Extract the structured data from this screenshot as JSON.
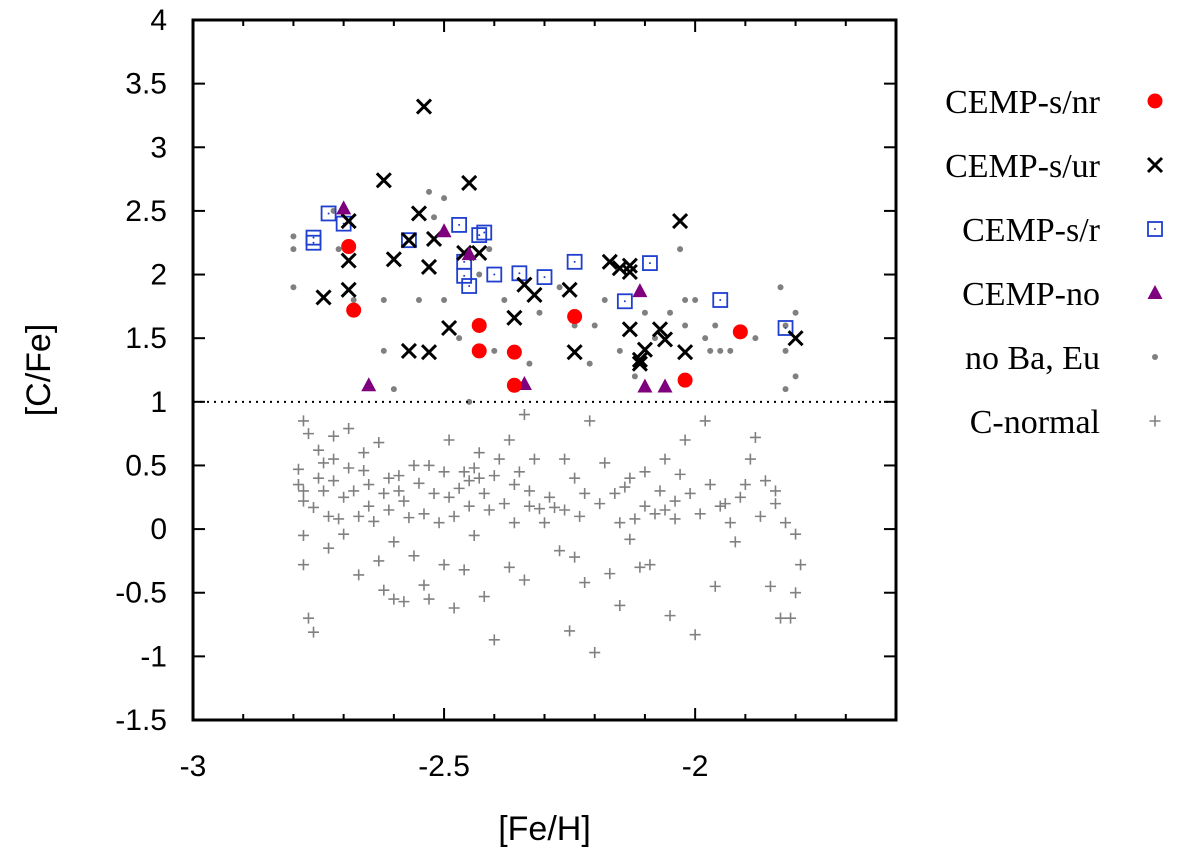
{
  "chart_data": {
    "type": "scatter",
    "title": "",
    "xlabel": "[Fe/H]",
    "ylabel": "[C/Fe]",
    "xlim": [
      -3,
      -1.6
    ],
    "ylim": [
      -1.5,
      4
    ],
    "xticks": [
      -3,
      -2.5,
      -2
    ],
    "xtick_labels": [
      "-3",
      "-2.5",
      "-2"
    ],
    "yticks": [
      -1.5,
      -1,
      -0.5,
      0,
      0.5,
      1,
      1.5,
      2,
      2.5,
      3,
      3.5,
      4
    ],
    "ytick_labels": [
      "-1.5",
      "-1",
      "-0.5",
      "0",
      "0.5",
      "1",
      "1.5",
      "2",
      "2.5",
      "3",
      "3.5",
      "4"
    ],
    "reference_line": {
      "y": 1,
      "style": "dotted"
    },
    "legend_position": "right, outside plot",
    "series": [
      {
        "name": "CEMP-s/nr",
        "marker": "filled-circle",
        "color": "#ff0000",
        "points": [
          [
            -2.69,
            2.22
          ],
          [
            -2.68,
            1.72
          ],
          [
            -2.43,
            1.6
          ],
          [
            -2.43,
            1.4
          ],
          [
            -2.36,
            1.39
          ],
          [
            -2.36,
            1.13
          ],
          [
            -2.24,
            1.67
          ],
          [
            -2.02,
            1.17
          ],
          [
            -1.91,
            1.55
          ]
        ]
      },
      {
        "name": "CEMP-s/ur",
        "marker": "cross",
        "color": "#000000",
        "points": [
          [
            -2.74,
            1.82
          ],
          [
            -2.69,
            2.42
          ],
          [
            -2.69,
            2.11
          ],
          [
            -2.69,
            1.88
          ],
          [
            -2.62,
            2.74
          ],
          [
            -2.6,
            2.12
          ],
          [
            -2.57,
            2.27
          ],
          [
            -2.57,
            1.4
          ],
          [
            -2.55,
            2.48
          ],
          [
            -2.54,
            3.32
          ],
          [
            -2.53,
            2.06
          ],
          [
            -2.53,
            1.39
          ],
          [
            -2.52,
            2.28
          ],
          [
            -2.49,
            1.58
          ],
          [
            -2.46,
            2.17
          ],
          [
            -2.45,
            2.72
          ],
          [
            -2.43,
            2.17
          ],
          [
            -2.36,
            1.66
          ],
          [
            -2.34,
            1.92
          ],
          [
            -2.32,
            1.84
          ],
          [
            -2.25,
            1.88
          ],
          [
            -2.24,
            1.39
          ],
          [
            -2.17,
            2.1
          ],
          [
            -2.15,
            2.05
          ],
          [
            -2.13,
            2.07
          ],
          [
            -2.13,
            2.02
          ],
          [
            -2.13,
            1.57
          ],
          [
            -2.11,
            1.33
          ],
          [
            -2.11,
            1.3
          ],
          [
            -2.1,
            1.41
          ],
          [
            -2.07,
            1.57
          ],
          [
            -2.06,
            1.49
          ],
          [
            -2.03,
            2.42
          ],
          [
            -2.02,
            1.39
          ],
          [
            -1.8,
            1.5
          ]
        ]
      },
      {
        "name": "CEMP-s/r",
        "marker": "open-square",
        "color": "#1f3fcf",
        "points": [
          [
            -2.76,
            2.29
          ],
          [
            -2.76,
            2.25
          ],
          [
            -2.73,
            2.48
          ],
          [
            -2.7,
            2.4
          ],
          [
            -2.57,
            2.27
          ],
          [
            -2.47,
            2.39
          ],
          [
            -2.46,
            1.99
          ],
          [
            -2.46,
            2.1
          ],
          [
            -2.45,
            1.91
          ],
          [
            -2.43,
            2.31
          ],
          [
            -2.42,
            2.33
          ],
          [
            -2.4,
            2.0
          ],
          [
            -2.35,
            2.01
          ],
          [
            -2.3,
            1.98
          ],
          [
            -2.24,
            2.1
          ],
          [
            -2.14,
            1.79
          ],
          [
            -2.09,
            2.09
          ],
          [
            -1.95,
            1.8
          ],
          [
            -1.82,
            1.58
          ]
        ]
      },
      {
        "name": "CEMP-no",
        "marker": "filled-triangle",
        "color": "#7f007f",
        "points": [
          [
            -2.7,
            2.52
          ],
          [
            -2.65,
            1.13
          ],
          [
            -2.5,
            2.34
          ],
          [
            -2.45,
            2.16
          ],
          [
            -2.34,
            1.14
          ],
          [
            -2.11,
            1.87
          ],
          [
            -2.1,
            1.12
          ],
          [
            -2.06,
            1.12
          ]
        ]
      },
      {
        "name": "no Ba, Eu",
        "marker": "small-dot",
        "color": "#808080",
        "points": [
          [
            -2.8,
            2.3
          ],
          [
            -2.8,
            2.2
          ],
          [
            -2.8,
            1.9
          ],
          [
            -2.72,
            2.5
          ],
          [
            -2.71,
            2.2
          ],
          [
            -2.68,
            1.8
          ],
          [
            -2.62,
            1.8
          ],
          [
            -2.62,
            1.4
          ],
          [
            -2.6,
            1.1
          ],
          [
            -2.55,
            1.8
          ],
          [
            -2.53,
            2.65
          ],
          [
            -2.52,
            2.45
          ],
          [
            -2.5,
            2.6
          ],
          [
            -2.5,
            1.8
          ],
          [
            -2.47,
            1.5
          ],
          [
            -2.45,
            1.0
          ],
          [
            -2.43,
            2.0
          ],
          [
            -2.41,
            2.2
          ],
          [
            -2.4,
            1.4
          ],
          [
            -2.38,
            1.8
          ],
          [
            -2.33,
            1.3
          ],
          [
            -2.31,
            1.7
          ],
          [
            -2.27,
            1.9
          ],
          [
            -2.24,
            1.6
          ],
          [
            -2.21,
            1.3
          ],
          [
            -2.2,
            1.6
          ],
          [
            -2.18,
            1.8
          ],
          [
            -2.15,
            1.4
          ],
          [
            -2.12,
            1.2
          ],
          [
            -2.1,
            1.7
          ],
          [
            -2.08,
            1.5
          ],
          [
            -2.05,
            1.7
          ],
          [
            -2.03,
            2.2
          ],
          [
            -2.02,
            1.8
          ],
          [
            -2.02,
            1.6
          ],
          [
            -2.0,
            1.8
          ],
          [
            -1.98,
            1.5
          ],
          [
            -1.97,
            1.4
          ],
          [
            -1.96,
            1.6
          ],
          [
            -1.95,
            1.4
          ],
          [
            -1.93,
            1.4
          ],
          [
            -1.88,
            1.5
          ],
          [
            -1.83,
            1.9
          ],
          [
            -1.82,
            1.6
          ],
          [
            -1.82,
            1.4
          ],
          [
            -1.82,
            1.1
          ],
          [
            -1.8,
            1.7
          ],
          [
            -1.8,
            1.2
          ]
        ]
      },
      {
        "name": "C-normal",
        "marker": "plus",
        "color": "#808080",
        "points": [
          [
            -2.79,
            0.47
          ],
          [
            -2.79,
            0.35
          ],
          [
            -2.78,
            0.3
          ],
          [
            -2.78,
            0.22
          ],
          [
            -2.78,
            -0.05
          ],
          [
            -2.78,
            -0.28
          ],
          [
            -2.78,
            0.85
          ],
          [
            -2.77,
            0.75
          ],
          [
            -2.77,
            -0.7
          ],
          [
            -2.76,
            -0.81
          ],
          [
            -2.76,
            0.17
          ],
          [
            -2.75,
            0.62
          ],
          [
            -2.75,
            0.4
          ],
          [
            -2.74,
            0.52
          ],
          [
            -2.74,
            0.3
          ],
          [
            -2.73,
            0.1
          ],
          [
            -2.73,
            -0.15
          ],
          [
            -2.72,
            0.73
          ],
          [
            -2.72,
            0.55
          ],
          [
            -2.72,
            0.38
          ],
          [
            -2.71,
            0.08
          ],
          [
            -2.7,
            -0.04
          ],
          [
            -2.7,
            0.25
          ],
          [
            -2.69,
            0.48
          ],
          [
            -2.69,
            0.79
          ],
          [
            -2.68,
            0.3
          ],
          [
            -2.67,
            -0.36
          ],
          [
            -2.67,
            0.1
          ],
          [
            -2.66,
            0.46
          ],
          [
            -2.66,
            0.6
          ],
          [
            -2.65,
            0.35
          ],
          [
            -2.65,
            0.18
          ],
          [
            -2.64,
            0.06
          ],
          [
            -2.63,
            -0.25
          ],
          [
            -2.63,
            0.68
          ],
          [
            -2.62,
            0.28
          ],
          [
            -2.62,
            -0.48
          ],
          [
            -2.61,
            0.4
          ],
          [
            -2.61,
            0.15
          ],
          [
            -2.6,
            -0.1
          ],
          [
            -2.6,
            -0.55
          ],
          [
            -2.59,
            0.42
          ],
          [
            -2.59,
            0.3
          ],
          [
            -2.58,
            -0.57
          ],
          [
            -2.58,
            0.22
          ],
          [
            -2.57,
            0.09
          ],
          [
            -2.56,
            0.5
          ],
          [
            -2.56,
            -0.21
          ],
          [
            -2.55,
            0.36
          ],
          [
            -2.54,
            0.12
          ],
          [
            -2.54,
            -0.44
          ],
          [
            -2.53,
            0.5
          ],
          [
            -2.53,
            -0.55
          ],
          [
            -2.52,
            0.28
          ],
          [
            -2.51,
            0.05
          ],
          [
            -2.5,
            0.45
          ],
          [
            -2.5,
            -0.28
          ],
          [
            -2.49,
            0.7
          ],
          [
            -2.49,
            0.25
          ],
          [
            -2.48,
            -0.62
          ],
          [
            -2.48,
            0.1
          ],
          [
            -2.47,
            0.32
          ],
          [
            -2.46,
            0.45
          ],
          [
            -2.46,
            -0.32
          ],
          [
            -2.45,
            0.38
          ],
          [
            -2.45,
            0.18
          ],
          [
            -2.44,
            0.48
          ],
          [
            -2.44,
            -0.05
          ],
          [
            -2.43,
            0.4
          ],
          [
            -2.43,
            0.6
          ],
          [
            -2.42,
            0.28
          ],
          [
            -2.42,
            -0.53
          ],
          [
            -2.41,
            0.15
          ],
          [
            -2.4,
            0.42
          ],
          [
            -2.4,
            -0.87
          ],
          [
            -2.39,
            0.55
          ],
          [
            -2.38,
            0.2
          ],
          [
            -2.37,
            0.7
          ],
          [
            -2.37,
            -0.3
          ],
          [
            -2.36,
            0.35
          ],
          [
            -2.36,
            0.05
          ],
          [
            -2.35,
            0.45
          ],
          [
            -2.34,
            -0.4
          ],
          [
            -2.34,
            0.9
          ],
          [
            -2.33,
            0.3
          ],
          [
            -2.33,
            0.18
          ],
          [
            -2.32,
            0.55
          ],
          [
            -2.31,
            0.16
          ],
          [
            -2.3,
            0.05
          ],
          [
            -2.29,
            0.25
          ],
          [
            -2.28,
            0.17
          ],
          [
            -2.27,
            -0.17
          ],
          [
            -2.26,
            0.15
          ],
          [
            -2.26,
            0.55
          ],
          [
            -2.25,
            -0.8
          ],
          [
            -2.24,
            0.4
          ],
          [
            -2.24,
            -0.22
          ],
          [
            -2.23,
            0.1
          ],
          [
            -2.22,
            -0.42
          ],
          [
            -2.22,
            0.28
          ],
          [
            -2.21,
            0.85
          ],
          [
            -2.2,
            -0.97
          ],
          [
            -2.19,
            0.2
          ],
          [
            -2.18,
            0.52
          ],
          [
            -2.17,
            -0.35
          ],
          [
            -2.16,
            0.28
          ],
          [
            -2.15,
            0.05
          ],
          [
            -2.15,
            -0.6
          ],
          [
            -2.14,
            0.33
          ],
          [
            -2.13,
            -0.08
          ],
          [
            -2.13,
            0.4
          ],
          [
            -2.12,
            0.08
          ],
          [
            -2.11,
            -0.3
          ],
          [
            -2.1,
            0.18
          ],
          [
            -2.1,
            0.45
          ],
          [
            -2.09,
            -0.28
          ],
          [
            -2.08,
            0.12
          ],
          [
            -2.07,
            0.3
          ],
          [
            -2.06,
            0.55
          ],
          [
            -2.06,
            0.15
          ],
          [
            -2.05,
            -0.68
          ],
          [
            -2.04,
            0.22
          ],
          [
            -2.04,
            0.08
          ],
          [
            -2.03,
            0.43
          ],
          [
            -2.02,
            0.7
          ],
          [
            -2.01,
            0.28
          ],
          [
            -2.0,
            -0.83
          ],
          [
            -1.99,
            0.12
          ],
          [
            -1.98,
            0.85
          ],
          [
            -1.97,
            0.35
          ],
          [
            -1.96,
            -0.45
          ],
          [
            -1.95,
            0.18
          ],
          [
            -1.94,
            0.2
          ],
          [
            -1.93,
            0.05
          ],
          [
            -1.92,
            -0.1
          ],
          [
            -1.91,
            0.25
          ],
          [
            -1.9,
            0.35
          ],
          [
            -1.89,
            0.55
          ],
          [
            -1.88,
            0.72
          ],
          [
            -1.87,
            0.1
          ],
          [
            -1.86,
            0.38
          ],
          [
            -1.85,
            -0.45
          ],
          [
            -1.84,
            0.3
          ],
          [
            -1.84,
            0.2
          ],
          [
            -1.83,
            -0.7
          ],
          [
            -1.82,
            0.05
          ],
          [
            -1.81,
            -0.7
          ],
          [
            -1.8,
            -0.04
          ],
          [
            -1.8,
            -0.5
          ],
          [
            -1.79,
            -0.28
          ]
        ]
      }
    ]
  }
}
